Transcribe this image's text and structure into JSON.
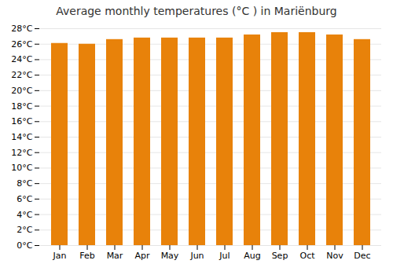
{
  "chart_data": {
    "type": "bar",
    "title": "Average monthly temperatures (°C ) in Mariënburg",
    "categories": [
      "Jan",
      "Feb",
      "Mar",
      "Apr",
      "May",
      "Jun",
      "Jul",
      "Aug",
      "Sep",
      "Oct",
      "Nov",
      "Dec"
    ],
    "values": [
      26.1,
      26.0,
      26.6,
      26.8,
      26.8,
      26.8,
      26.8,
      27.2,
      27.5,
      27.5,
      27.2,
      26.6
    ],
    "color": "#E8820A",
    "ylim": [
      0,
      28
    ],
    "yticks": [
      {
        "value": 0,
        "label": "0°C"
      },
      {
        "value": 2,
        "label": "2°C"
      },
      {
        "value": 4,
        "label": "4°C"
      },
      {
        "value": 6,
        "label": "6°C"
      },
      {
        "value": 8,
        "label": "8°C"
      },
      {
        "value": 10,
        "label": "10°C"
      },
      {
        "value": 12,
        "label": "12°C"
      },
      {
        "value": 14,
        "label": "14°C"
      },
      {
        "value": 16,
        "label": "16°C"
      },
      {
        "value": 18,
        "label": "18°C"
      },
      {
        "value": 20,
        "label": "20°C"
      },
      {
        "value": 22,
        "label": "22°C"
      },
      {
        "value": 24,
        "label": "24°C"
      },
      {
        "value": 26,
        "label": "26°C"
      },
      {
        "value": 28,
        "label": "28°C"
      }
    ],
    "grid": true
  }
}
